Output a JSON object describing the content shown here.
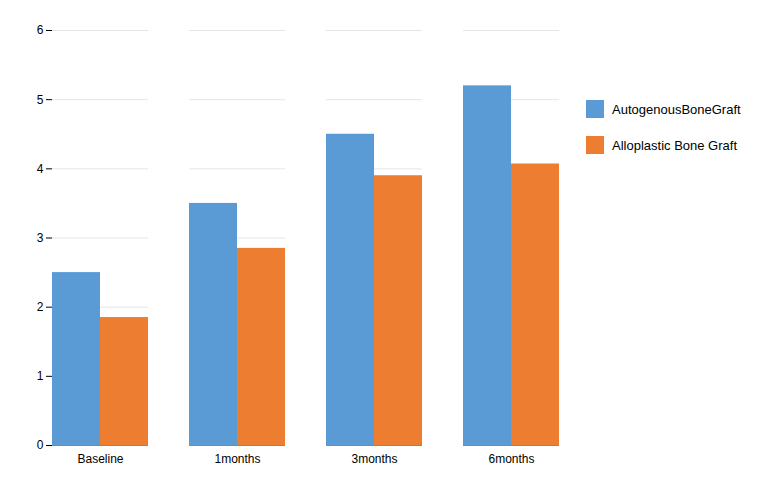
{
  "chart_data": {
    "type": "bar",
    "categories": [
      "Baseline",
      "1months",
      "3months",
      "6months"
    ],
    "series": [
      {
        "name": "AutogenousBoneGraft",
        "color": "#5B9BD5",
        "values": [
          2.5,
          3.5,
          4.5,
          5.2
        ]
      },
      {
        "name": "Alloplastic Bone Graft",
        "color": "#ED7D31",
        "values": [
          1.85,
          2.85,
          3.9,
          4.07
        ]
      }
    ],
    "ylim": [
      0,
      6
    ],
    "yticks": [
      0,
      1,
      2,
      3,
      4,
      5,
      6
    ],
    "grid": true,
    "legend": "right"
  }
}
